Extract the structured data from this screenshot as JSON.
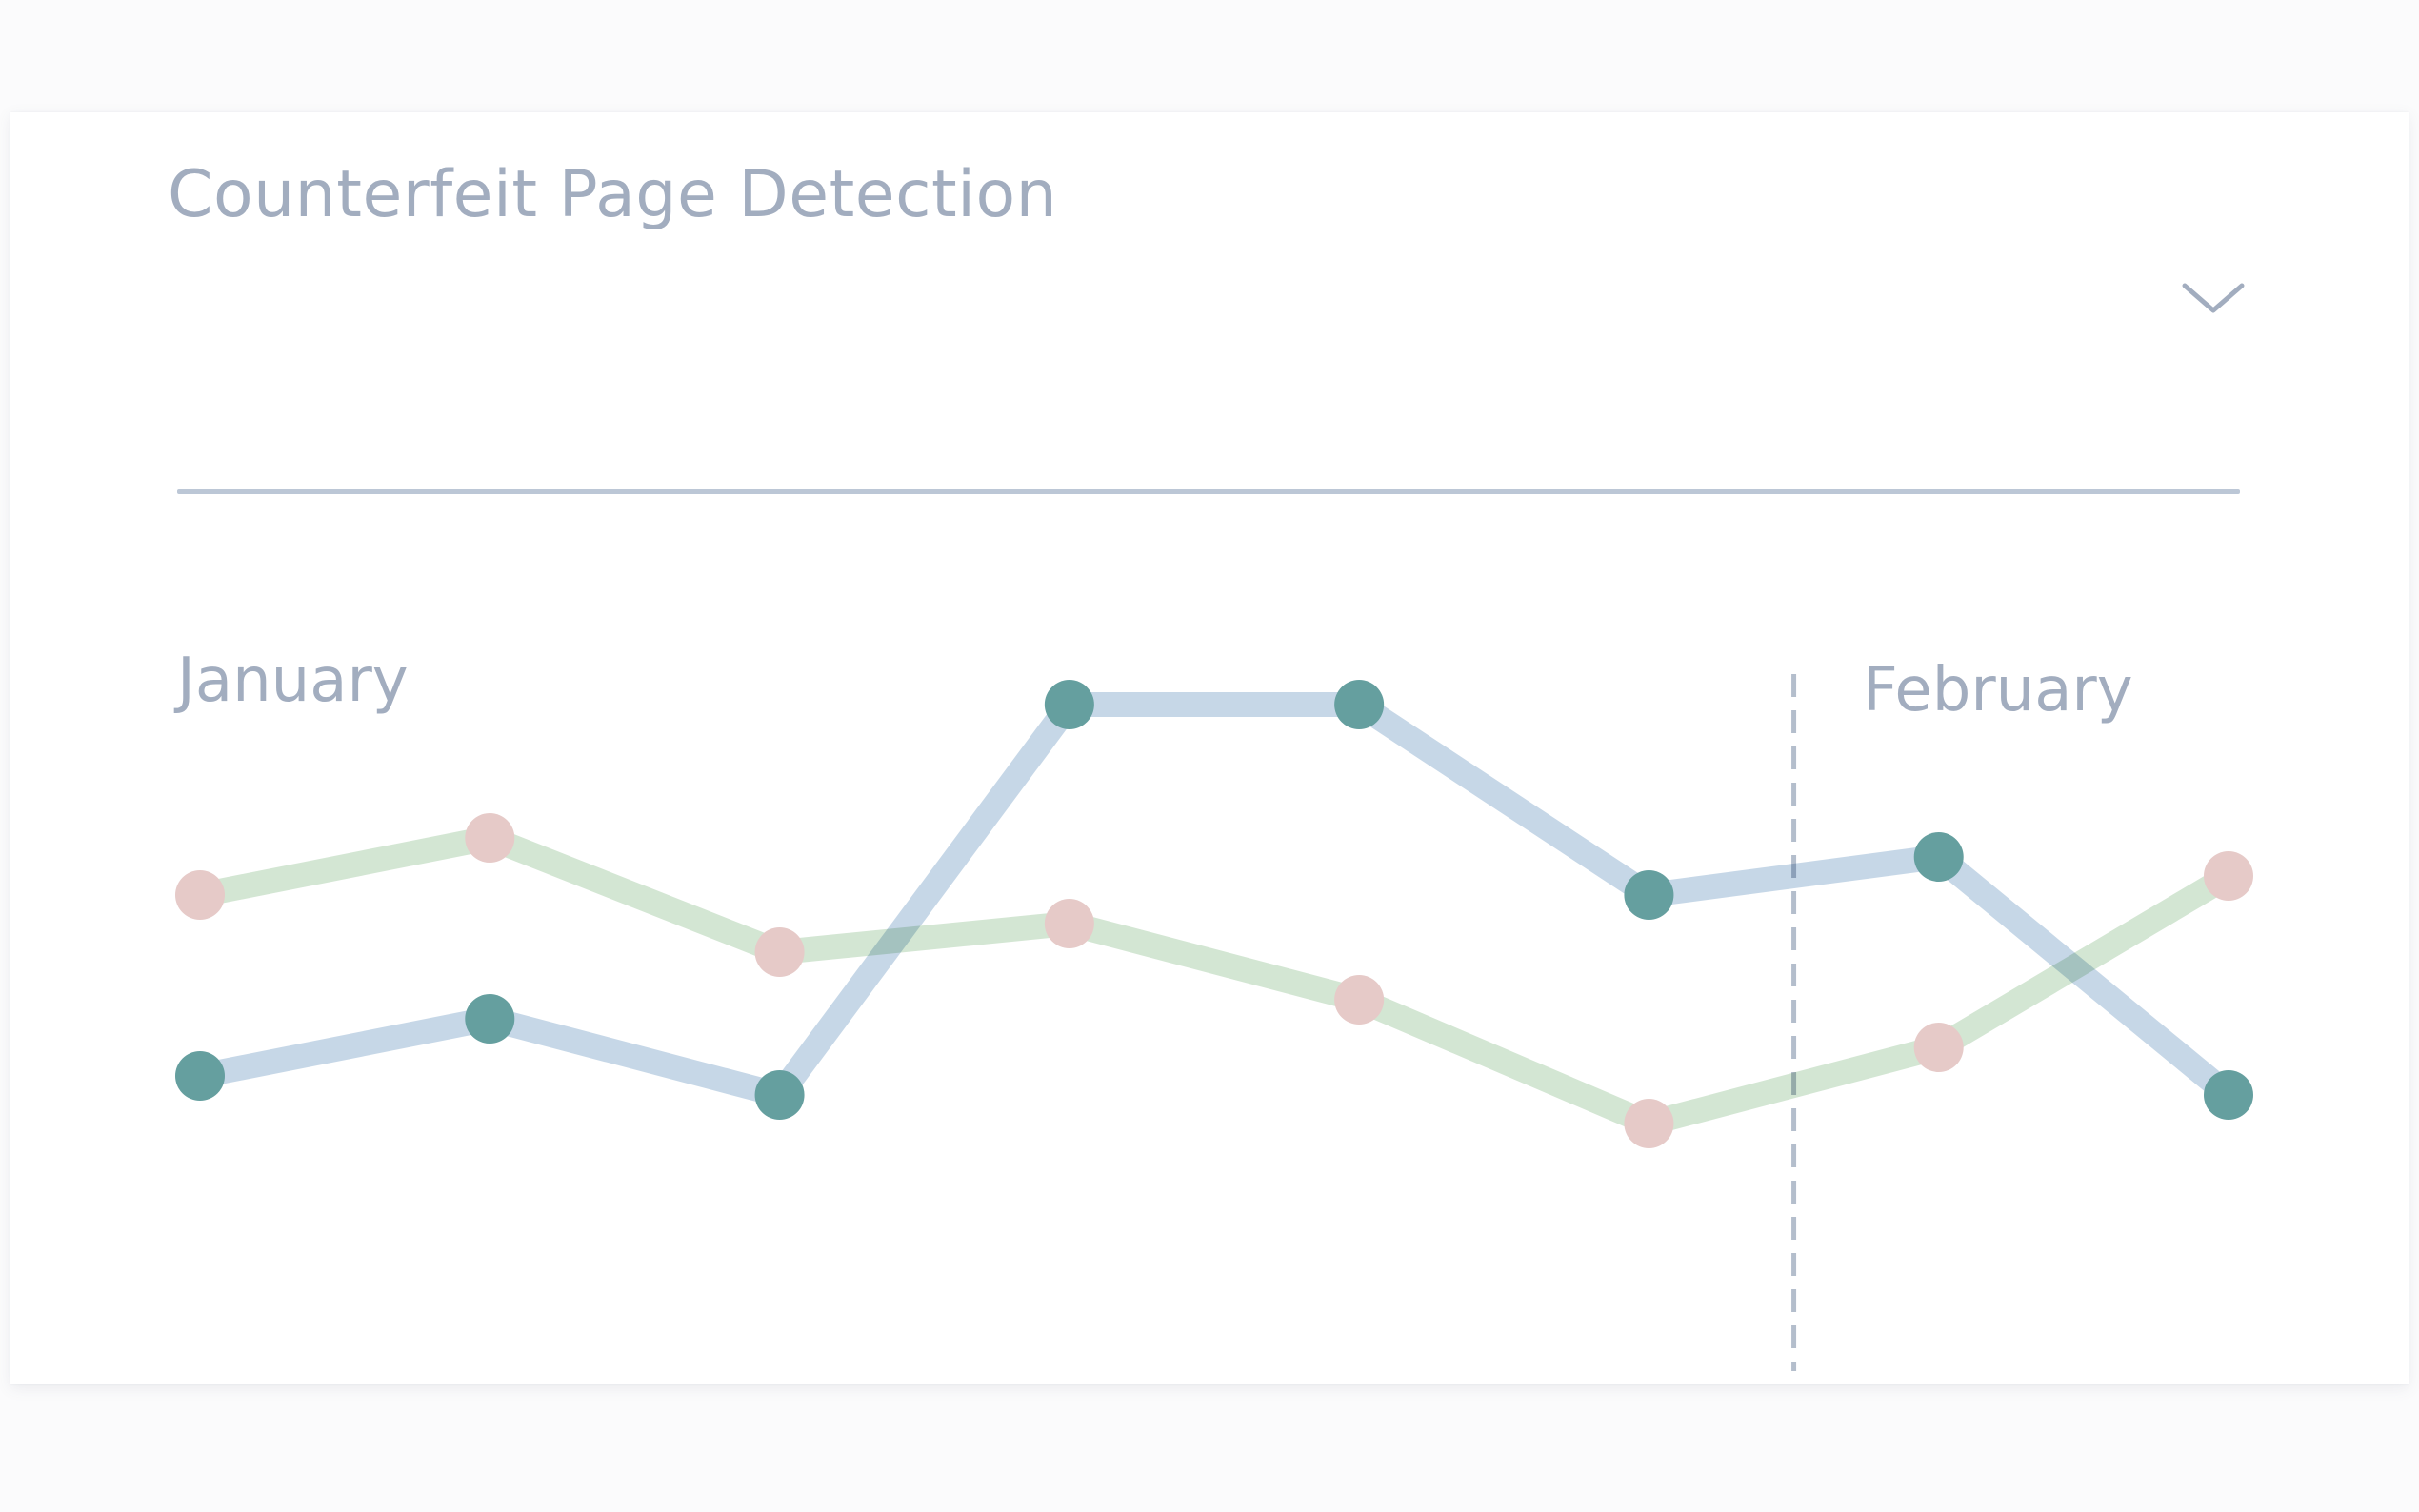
{
  "widget": {
    "title": "Counterfeit Page Detection",
    "dropdown_icon": "chevron-down-icon"
  },
  "colors": {
    "title_text": "#a2adbf",
    "divider": "#bcc7d6",
    "month_label": "#a2adbf",
    "blue_line": "#c3d5e6",
    "blue_marker": "#659f9f",
    "green_line": "#d1e5d1",
    "green_marker": "#e6cac8",
    "separator": "#b4becc"
  },
  "chart_data": {
    "type": "line",
    "x": [
      1,
      2,
      3,
      4,
      5,
      6,
      7,
      8
    ],
    "month_labels": [
      {
        "label": "January",
        "x": 1
      },
      {
        "label": "February",
        "x": 6.5
      }
    ],
    "period_divider_x": 6.5,
    "ylim": [
      0,
      10
    ],
    "grid": false,
    "legend": "none",
    "series": [
      {
        "values": [
          3.7,
          4.3,
          3.5,
          7.6,
          7.6,
          5.6,
          6.0,
          3.5
        ]
      },
      {
        "values": [
          5.6,
          6.2,
          5.0,
          5.3,
          4.5,
          3.2,
          4.0,
          5.8
        ]
      }
    ]
  }
}
